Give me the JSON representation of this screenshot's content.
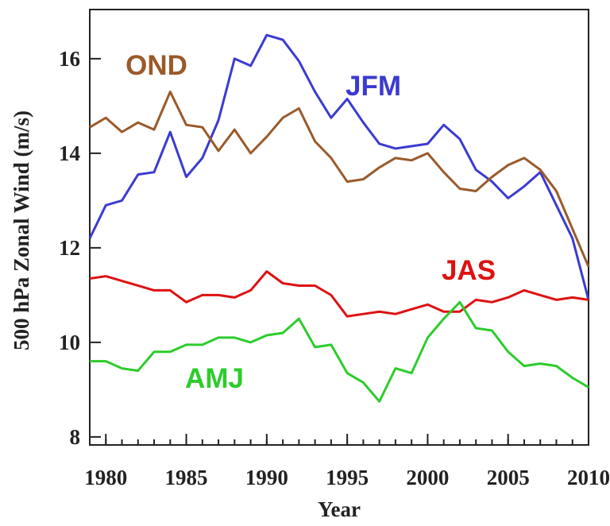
{
  "chart_data": {
    "type": "line",
    "x_label": "Year",
    "y_label": "500 hPa Zonal Wind (m/s)",
    "x": [
      1979,
      1980,
      1981,
      1982,
      1983,
      1984,
      1985,
      1986,
      1987,
      1988,
      1989,
      1990,
      1991,
      1992,
      1993,
      1994,
      1995,
      1996,
      1997,
      1998,
      1999,
      2000,
      2001,
      2002,
      2003,
      2004,
      2005,
      2006,
      2007,
      2008,
      2009,
      2010
    ],
    "xlim": [
      1979,
      2010
    ],
    "xticks": [
      1980,
      1985,
      1990,
      1995,
      2000,
      2005,
      2010
    ],
    "ylim": [
      7.83,
      17.04
    ],
    "yticks": [
      8,
      10,
      12,
      14,
      16
    ],
    "series": [
      {
        "name": "JFM",
        "color": "#3b3bd0",
        "values": [
          12.2,
          12.9,
          13.0,
          13.55,
          13.6,
          14.45,
          13.5,
          13.9,
          14.7,
          16.0,
          15.85,
          16.5,
          16.4,
          15.95,
          15.3,
          14.75,
          15.15,
          14.65,
          14.2,
          14.1,
          14.15,
          14.2,
          14.6,
          14.3,
          13.65,
          13.4,
          13.05,
          13.3,
          13.6,
          12.9,
          12.2,
          10.9
        ]
      },
      {
        "name": "OND",
        "color": "#9a5a2a",
        "values": [
          14.55,
          14.75,
          14.45,
          14.65,
          14.5,
          15.3,
          14.6,
          14.55,
          14.05,
          14.5,
          14.0,
          14.35,
          14.75,
          14.95,
          14.25,
          13.9,
          13.4,
          13.45,
          13.7,
          13.9,
          13.85,
          14.0,
          13.6,
          13.25,
          13.2,
          13.5,
          13.75,
          13.9,
          13.65,
          13.2,
          12.4,
          11.6
        ]
      },
      {
        "name": "JAS",
        "color": "#dd1111",
        "values": [
          11.35,
          11.4,
          11.3,
          11.2,
          11.1,
          11.1,
          10.85,
          11.0,
          11.0,
          10.95,
          11.1,
          11.5,
          11.25,
          11.2,
          11.2,
          11.0,
          10.55,
          10.6,
          10.65,
          10.6,
          10.7,
          10.8,
          10.65,
          10.65,
          10.9,
          10.85,
          10.95,
          11.1,
          11.0,
          10.9,
          10.95,
          10.9
        ]
      },
      {
        "name": "AMJ",
        "color": "#2ccc2c",
        "values": [
          9.6,
          9.6,
          9.45,
          9.4,
          9.8,
          9.8,
          9.95,
          9.95,
          10.1,
          10.1,
          10.0,
          10.15,
          10.2,
          10.5,
          9.9,
          9.95,
          9.35,
          9.15,
          8.75,
          9.45,
          9.35,
          10.1,
          10.5,
          10.85,
          10.3,
          10.25,
          9.8,
          9.5,
          9.55,
          9.5,
          9.25,
          9.05
        ]
      }
    ]
  }
}
